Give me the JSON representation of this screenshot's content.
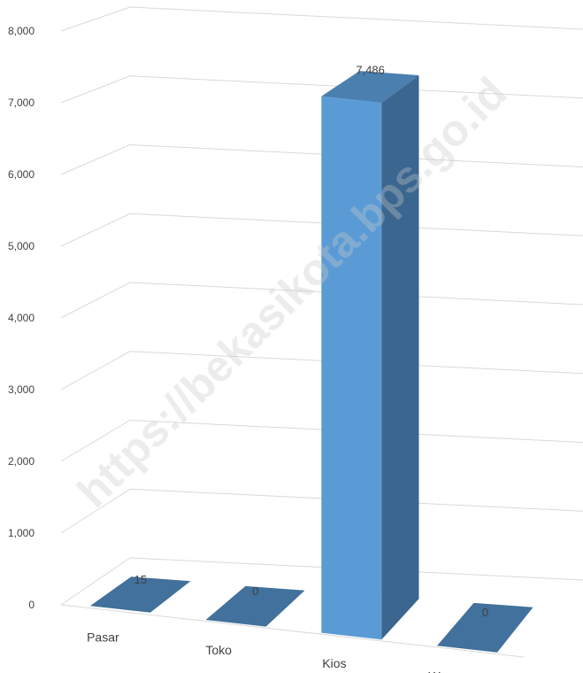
{
  "chart_data": {
    "type": "bar",
    "title": "",
    "xlabel": "",
    "ylabel": "",
    "categories": [
      "Pasar",
      "Toko",
      "Kios",
      "Warung"
    ],
    "values": [
      15,
      0,
      7486,
      0
    ],
    "value_labels": [
      "15",
      "0",
      "7,486",
      "0"
    ],
    "y_ticks": [
      "0",
      "1,000",
      "2,000",
      "3,000",
      "4,000",
      "5,000",
      "6,000",
      "7,000",
      "8,000"
    ],
    "ylim": [
      0,
      8000
    ],
    "grid": true,
    "style": "3d-column",
    "legend": "none",
    "colors": {
      "front": "#5B9BD5",
      "side": "#3A6690",
      "top": "#4A7FB0",
      "flat": "#41719C",
      "grid": "#D9D9D9",
      "text": "#404040"
    }
  },
  "watermark": "https://bekasikota.bps.go.id"
}
